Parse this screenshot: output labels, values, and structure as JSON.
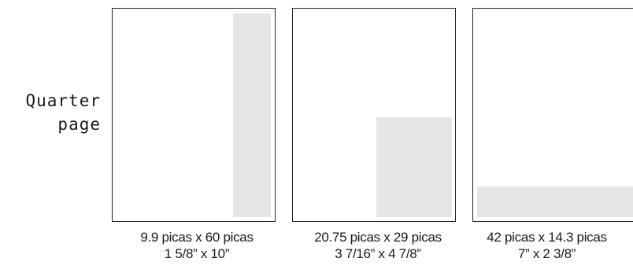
{
  "title": {
    "line1": "Quarter",
    "line2": "page"
  },
  "ad_fill_color": "#e6e6e6",
  "layouts": [
    {
      "picas": "9.9 picas x 60 picas",
      "inches": "1 5/8” x 10”"
    },
    {
      "picas": "20.75 picas x 29 picas",
      "inches": "3 7/16” x 4 7/8”"
    },
    {
      "picas": "42 picas x 14.3 picas",
      "inches": "7” x 2 3/8”"
    }
  ]
}
